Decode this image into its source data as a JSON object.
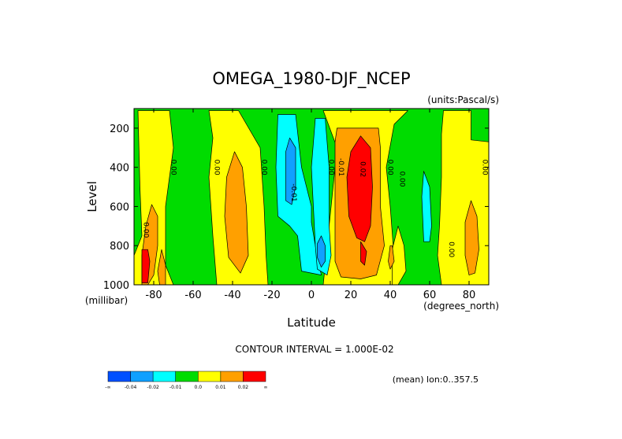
{
  "chart_data": {
    "type": "contour",
    "title": "OMEGA_1980-DJF_NCEP",
    "units_label": "(units:Pascal/s)",
    "xlabel": "Latitude",
    "xunits_label": "(degrees_north)",
    "ylabel": "Level",
    "yunits_label": "(millibar)",
    "xlim": [
      -90,
      90
    ],
    "ylim": [
      1000,
      100
    ],
    "y_direction": "inverted",
    "x_ticks": [
      -80,
      -60,
      -40,
      -20,
      0,
      20,
      40,
      60,
      80
    ],
    "x_tick_labels": [
      "-80",
      "-60",
      "-40",
      "-20",
      "0",
      "20",
      "40",
      "60",
      "80"
    ],
    "y_ticks": [
      200,
      400,
      600,
      800,
      1000
    ],
    "y_tick_labels": [
      "200",
      "400",
      "600",
      "800",
      "1000"
    ],
    "contour_interval_text": "CONTOUR INTERVAL = 1.000E-02",
    "subtitle_note": "(mean) lon:0..357.5",
    "contour_labels": [
      {
        "text": "0.00",
        "lat": -85,
        "level": 720
      },
      {
        "text": "0.00",
        "lat": -71,
        "level": 400
      },
      {
        "text": "0.00",
        "lat": -49,
        "level": 400
      },
      {
        "text": "0.00",
        "lat": -25,
        "level": 400
      },
      {
        "text": "-0.01",
        "lat": -10,
        "level": 530
      },
      {
        "text": "0.00",
        "lat": 9,
        "level": 400
      },
      {
        "text": "-0.01",
        "lat": 14,
        "level": 400
      },
      {
        "text": "0.02",
        "lat": 25,
        "level": 410
      },
      {
        "text": "0.00",
        "lat": 39,
        "level": 400
      },
      {
        "text": "0.00",
        "lat": 45,
        "level": 460
      },
      {
        "text": "0.00",
        "lat": 70,
        "level": 820
      },
      {
        "text": "0.00",
        "lat": 87,
        "level": 400
      }
    ],
    "colorbar": {
      "levels": [
        "-∞",
        "-0.04",
        "-0.02",
        "-0.01",
        "0.0",
        "0.01",
        "0.02",
        "∞"
      ],
      "colors": [
        "#0050ff",
        "#10a0ff",
        "#00ffff",
        "#00dc00",
        "#ffff00",
        "#ffa000",
        "#ff0000"
      ]
    },
    "regions": [
      {
        "value_band": "0.00 to 0.01",
        "color": "#ffff00",
        "polygon": [
          [
            -88,
            110
          ],
          [
            -72,
            110
          ],
          [
            -70,
            300
          ],
          [
            -74,
            600
          ],
          [
            -74,
            900
          ],
          [
            -70,
            1000
          ],
          [
            -90,
            1000
          ],
          [
            -90,
            850
          ],
          [
            -86,
            750
          ],
          [
            -87,
            500
          ]
        ]
      },
      {
        "value_band": "0.00 to 0.01",
        "color": "#ffff00",
        "polygon": [
          [
            -52,
            110
          ],
          [
            -37,
            110
          ],
          [
            -26,
            300
          ],
          [
            -24,
            600
          ],
          [
            -23,
            850
          ],
          [
            -22,
            1000
          ],
          [
            -48,
            1000
          ],
          [
            -50,
            750
          ],
          [
            -52,
            450
          ],
          [
            -50,
            250
          ]
        ]
      },
      {
        "value_band": "0.00 to 0.01",
        "color": "#ffff00",
        "polygon": [
          [
            6,
            110
          ],
          [
            49,
            110
          ],
          [
            42,
            180
          ],
          [
            38,
            400
          ],
          [
            40,
            600
          ],
          [
            43,
            1000
          ],
          [
            6,
            1000
          ],
          [
            9,
            700
          ],
          [
            13,
            300
          ]
        ]
      },
      {
        "value_band": "0.00 to 0.01",
        "color": "#ffff00",
        "polygon": [
          [
            41,
            820
          ],
          [
            44,
            700
          ],
          [
            47,
            800
          ],
          [
            48,
            930
          ],
          [
            44,
            1000
          ],
          [
            41,
            1000
          ]
        ]
      },
      {
        "value_band": "0.00 to 0.01",
        "color": "#ffff00",
        "polygon": [
          [
            67,
            110
          ],
          [
            81,
            110
          ],
          [
            81,
            260
          ],
          [
            90,
            270
          ],
          [
            90,
            1000
          ],
          [
            66,
            1000
          ],
          [
            64,
            850
          ],
          [
            65,
            700
          ],
          [
            66,
            450
          ],
          [
            66,
            230
          ]
        ]
      },
      {
        "value_band": "0.01 to 0.02",
        "color": "#ffa000",
        "polygon": [
          [
            -81,
            590
          ],
          [
            -78,
            650
          ],
          [
            -78,
            800
          ],
          [
            -80,
            950
          ],
          [
            -83,
            1000
          ],
          [
            -86,
            1000
          ],
          [
            -86,
            850
          ],
          [
            -84,
            700
          ]
        ]
      },
      {
        "value_band": "0.01 to 0.02",
        "color": "#ffa000",
        "polygon": [
          [
            -76,
            820
          ],
          [
            -74,
            900
          ],
          [
            -74,
            1000
          ],
          [
            -77,
            1000
          ],
          [
            -78,
            930
          ]
        ]
      },
      {
        "value_band": "0.01 to 0.02",
        "color": "#ffa000",
        "polygon": [
          [
            -39,
            320
          ],
          [
            -35,
            400
          ],
          [
            -33,
            600
          ],
          [
            -32,
            850
          ],
          [
            -36,
            940
          ],
          [
            -42,
            860
          ],
          [
            -44,
            650
          ],
          [
            -43,
            450
          ]
        ]
      },
      {
        "value_band": "0.01 to 0.02",
        "color": "#ffa000",
        "polygon": [
          [
            13,
            200
          ],
          [
            34,
            200
          ],
          [
            35,
            300
          ],
          [
            35,
            600
          ],
          [
            37,
            800
          ],
          [
            33,
            950
          ],
          [
            25,
            970
          ],
          [
            15,
            960
          ],
          [
            12,
            880
          ],
          [
            12,
            500
          ],
          [
            12,
            270
          ]
        ]
      },
      {
        "value_band": "0.01 to 0.02",
        "color": "#ffa000",
        "polygon": [
          [
            40,
            800
          ],
          [
            41,
            800
          ],
          [
            42,
            880
          ],
          [
            40,
            920
          ],
          [
            39,
            880
          ]
        ]
      },
      {
        "value_band": "0.01 to 0.02",
        "color": "#ffa000",
        "polygon": [
          [
            81,
            570
          ],
          [
            84,
            650
          ],
          [
            85,
            820
          ],
          [
            83,
            940
          ],
          [
            80,
            950
          ],
          [
            78,
            850
          ],
          [
            78,
            680
          ]
        ]
      },
      {
        "value_band": "> 0.02",
        "color": "#ff0000",
        "polygon": [
          [
            25,
            240
          ],
          [
            30,
            300
          ],
          [
            31,
            500
          ],
          [
            30,
            700
          ],
          [
            27,
            780
          ],
          [
            23,
            760
          ],
          [
            19,
            650
          ],
          [
            18,
            450
          ],
          [
            20,
            320
          ]
        ]
      },
      {
        "value_band": "> 0.02",
        "color": "#ff0000",
        "polygon": [
          [
            25,
            780
          ],
          [
            28,
            830
          ],
          [
            27,
            900
          ],
          [
            25,
            880
          ]
        ]
      },
      {
        "value_band": "> 0.02",
        "color": "#ff0000",
        "polygon": [
          [
            -86,
            820
          ],
          [
            -83,
            820
          ],
          [
            -82,
            880
          ],
          [
            -83,
            990
          ],
          [
            -86,
            990
          ]
        ]
      },
      {
        "value_band": "-0.02 to -0.01",
        "color": "#00ffff",
        "polygon": [
          [
            -17,
            130
          ],
          [
            -8,
            130
          ],
          [
            -5,
            400
          ],
          [
            0,
            600
          ],
          [
            0,
            680
          ],
          [
            2,
            800
          ],
          [
            5,
            950
          ],
          [
            -5,
            930
          ],
          [
            -7,
            750
          ],
          [
            -11,
            700
          ],
          [
            -17,
            650
          ],
          [
            -18,
            400
          ]
        ]
      },
      {
        "value_band": "-0.02 to -0.01",
        "color": "#00ffff",
        "polygon": [
          [
            2,
            150
          ],
          [
            7,
            150
          ],
          [
            9,
            400
          ],
          [
            9,
            700
          ],
          [
            10,
            850
          ],
          [
            8,
            950
          ],
          [
            3,
            920
          ],
          [
            2,
            800
          ],
          [
            1,
            600
          ],
          [
            0,
            400
          ]
        ]
      },
      {
        "value_band": "-0.02 to -0.01",
        "color": "#00ffff",
        "polygon": [
          [
            57,
            420
          ],
          [
            60,
            500
          ],
          [
            61,
            700
          ],
          [
            60,
            780
          ],
          [
            57,
            780
          ],
          [
            56,
            550
          ]
        ]
      },
      {
        "value_band": "-0.04 to -0.02",
        "color": "#10a0ff",
        "polygon": [
          [
            -11,
            250
          ],
          [
            -8,
            300
          ],
          [
            -8,
            500
          ],
          [
            -10,
            590
          ],
          [
            -13,
            570
          ],
          [
            -13,
            320
          ]
        ]
      },
      {
        "value_band": "-0.04 to -0.02",
        "color": "#10a0ff",
        "polygon": [
          [
            5,
            750
          ],
          [
            7,
            800
          ],
          [
            7,
            880
          ],
          [
            5,
            910
          ],
          [
            3,
            860
          ],
          [
            3,
            790
          ]
        ]
      }
    ]
  }
}
